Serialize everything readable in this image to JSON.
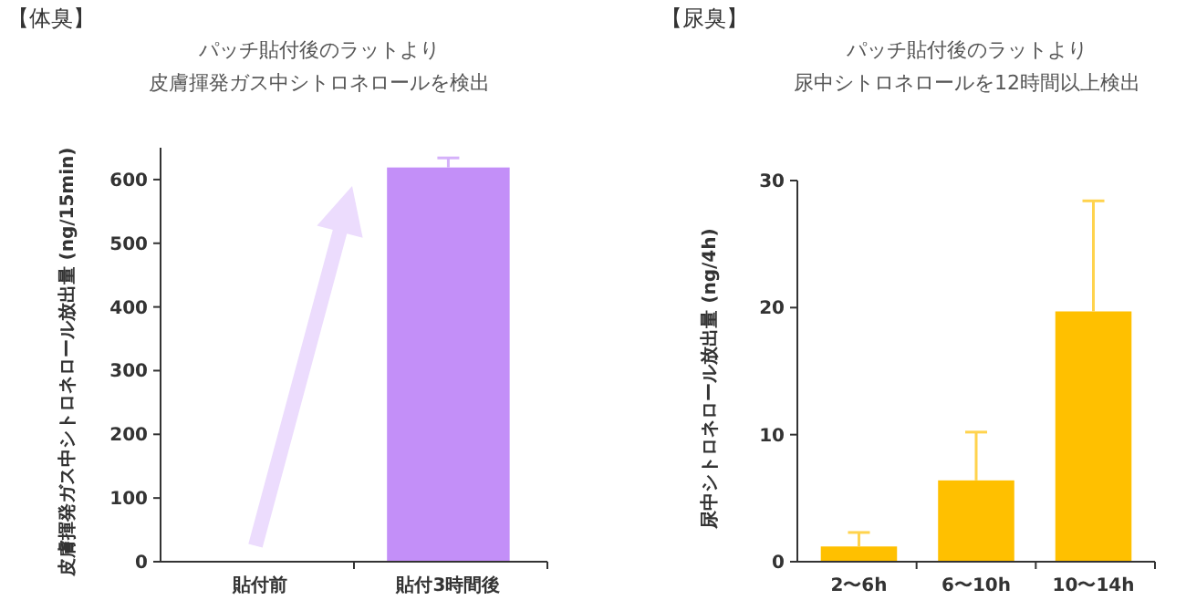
{
  "chart_data": [
    {
      "type": "bar",
      "title": "【体臭】",
      "subtitle": "パッチ貼付後のラットより",
      "annotations": [
        "皮膚揮発ガス中シトロネロールを検出"
      ],
      "ylabel": "皮膚揮発ガス中シトロネロール放出量 (ng/15min)",
      "categories": [
        "貼付前",
        "貼付3時間後"
      ],
      "values": [
        0,
        619
      ],
      "errors": [
        null,
        15
      ],
      "color": "#c38ff8",
      "ylim": [
        0,
        650
      ],
      "yticks": [
        0,
        100,
        200,
        300,
        400,
        500,
        600
      ]
    },
    {
      "type": "bar",
      "title": "【尿臭】",
      "subtitle": "パッチ貼付後のラットより",
      "annotations": [
        "尿中シトロネロールを12時間以上検出"
      ],
      "ylabel": "尿中シトロネロール放出量 (ng/4h)",
      "categories": [
        "2〜6h",
        "6〜10h",
        "10〜14h"
      ],
      "values": [
        1.2,
        6.4,
        19.7
      ],
      "errors": [
        1.1,
        3.8,
        8.7
      ],
      "color": "#ffc000",
      "ylim": [
        0,
        30
      ],
      "yticks": [
        0,
        10,
        20,
        30
      ]
    }
  ]
}
